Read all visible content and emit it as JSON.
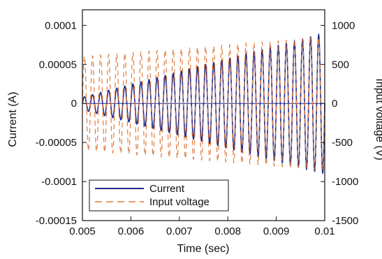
{
  "chart_data": {
    "type": "line",
    "title": "",
    "xlabel": "Time (sec)",
    "ylabel_left": "Current (A)",
    "ylabel_right": "Input voltage (V)",
    "xlim": [
      0.005,
      0.01
    ],
    "ylim_left": [
      -0.00015,
      0.00012
    ],
    "ylim_right": [
      -1500,
      1200
    ],
    "x_ticks": [
      0.005,
      0.006,
      0.007,
      0.008,
      0.009,
      0.01
    ],
    "x_tick_labels": [
      "0.005",
      "0.006",
      "0.007",
      "0.008",
      "0.009",
      "0.01"
    ],
    "y_left_ticks": [
      0.0001,
      5e-05,
      0,
      -5e-05,
      -0.0001,
      -0.00015
    ],
    "y_left_tick_labels": [
      "0.0001",
      "0.00005",
      "0",
      "-0.00005",
      "-0.0001",
      "-0.00015"
    ],
    "y_right_ticks": [
      1000,
      500,
      0,
      -500,
      -1000,
      -1500
    ],
    "y_right_tick_labels": [
      "1000",
      "500",
      "0",
      "-500",
      "-1000",
      "-1500"
    ],
    "grid": false,
    "legend": {
      "placement": "bottom-left",
      "entries": [
        "Current",
        "Input voltage"
      ]
    },
    "series": [
      {
        "name": "Current",
        "axis": "left",
        "style": "solid",
        "color": "#1f2a8c",
        "waveform": {
          "kind": "growing-sine",
          "start_x": 0.005,
          "end_x": 0.01,
          "frequency_hz": 6000,
          "amplitude_start": 8e-06,
          "amplitude_end": 9e-05,
          "offset": 0
        }
      },
      {
        "name": "Input voltage",
        "axis": "right",
        "style": "dashed",
        "color": "#e07a3c",
        "waveform": {
          "kind": "growing-sine",
          "start_x": 0.005,
          "end_x": 0.01,
          "frequency_hz": 6000,
          "amplitude_start": 600,
          "amplitude_end": 850,
          "offset": 0
        }
      }
    ]
  }
}
